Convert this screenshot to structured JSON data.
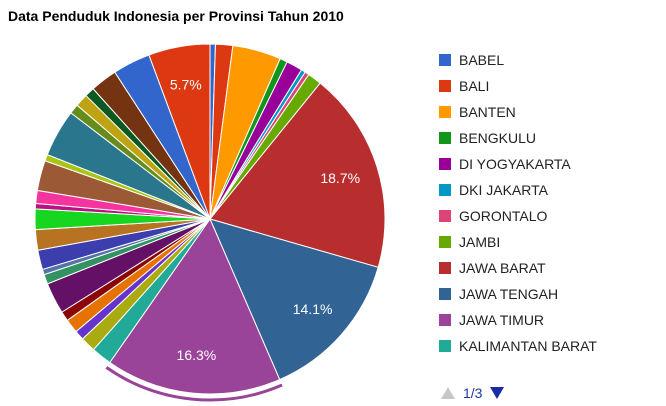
{
  "chart_data": {
    "type": "pie",
    "title": "Data Penduduk Indonesia per Provinsi Tahun 2010",
    "slices": [
      {
        "label": "BABEL",
        "value": 0.5,
        "color": "#3366cc"
      },
      {
        "label": "BALI",
        "value": 1.6,
        "color": "#dc3912"
      },
      {
        "label": "BANTEN",
        "value": 4.5,
        "color": "#ff9900"
      },
      {
        "label": "BENGKULU",
        "value": 0.7,
        "color": "#109618"
      },
      {
        "label": "DI YOGYAKARTA",
        "value": 1.5,
        "color": "#990099"
      },
      {
        "label": "DKI JAKARTA",
        "value": 0.4,
        "color": "#0099c6"
      },
      {
        "label": "GORONTALO",
        "value": 0.4,
        "color": "#dd4477"
      },
      {
        "label": "JAMBI",
        "value": 1.3,
        "color": "#66aa00"
      },
      {
        "label": "JAWA BARAT",
        "value": 18.7,
        "color": "#b82e2e"
      },
      {
        "label": "JAWA TENGAH",
        "value": 14.1,
        "color": "#316395"
      },
      {
        "label": "JAWA TIMUR",
        "value": 16.3,
        "color": "#994499"
      },
      {
        "label": "KALIMANTAN BARAT",
        "value": 1.9,
        "color": "#22aa99"
      },
      {
        "label": "",
        "value": 1.4,
        "color": "#aaaa11"
      },
      {
        "label": "",
        "value": 0.9,
        "color": "#6633cc"
      },
      {
        "label": "",
        "value": 1.3,
        "color": "#e67300"
      },
      {
        "label": "",
        "value": 0.9,
        "color": "#8b0707"
      },
      {
        "label": "",
        "value": 2.9,
        "color": "#651067"
      },
      {
        "label": "",
        "value": 0.9,
        "color": "#329262"
      },
      {
        "label": "",
        "value": 0.5,
        "color": "#5574a6"
      },
      {
        "label": "",
        "value": 1.8,
        "color": "#3b3eac"
      },
      {
        "label": "",
        "value": 1.9,
        "color": "#b77322"
      },
      {
        "label": "",
        "value": 1.9,
        "color": "#16d620"
      },
      {
        "label": "",
        "value": 0.5,
        "color": "#b91383"
      },
      {
        "label": "",
        "value": 1.2,
        "color": "#f4359e"
      },
      {
        "label": "",
        "value": 2.8,
        "color": "#9c5935"
      },
      {
        "label": "",
        "value": 0.6,
        "color": "#a9c413"
      },
      {
        "label": "",
        "value": 4.4,
        "color": "#2a778d"
      },
      {
        "label": "",
        "value": 0.9,
        "color": "#668d1c"
      },
      {
        "label": "",
        "value": 1.2,
        "color": "#bea413"
      },
      {
        "label": "",
        "value": 0.9,
        "color": "#0c5922"
      },
      {
        "label": "",
        "value": 2.5,
        "color": "#743411"
      },
      {
        "label": "",
        "value": 3.5,
        "color": "#3366cc"
      },
      {
        "label": "",
        "value": 5.7,
        "color": "#dc3912"
      }
    ],
    "shown_labels": {
      "8": "18.7%",
      "9": "14.1%",
      "10": "16.3%",
      "32": "5.7%"
    },
    "legend_position": "right",
    "highlighted_slice": 10
  },
  "legend": {
    "items": [
      {
        "label": "BABEL",
        "color": "#3366cc"
      },
      {
        "label": "BALI",
        "color": "#dc3912"
      },
      {
        "label": "BANTEN",
        "color": "#ff9900"
      },
      {
        "label": "BENGKULU",
        "color": "#109618"
      },
      {
        "label": "DI YOGYAKARTA",
        "color": "#990099"
      },
      {
        "label": "DKI JAKARTA",
        "color": "#0099c6"
      },
      {
        "label": "GORONTALO",
        "color": "#dd4477"
      },
      {
        "label": "JAMBI",
        "color": "#66aa00"
      },
      {
        "label": "JAWA BARAT",
        "color": "#b82e2e"
      },
      {
        "label": "JAWA TENGAH",
        "color": "#316395"
      },
      {
        "label": "JAWA TIMUR",
        "color": "#994499"
      },
      {
        "label": "KALIMANTAN BARAT",
        "color": "#22aa99"
      }
    ],
    "pager": {
      "text": "1/3",
      "prev_icon": "triangle-up-icon",
      "next_icon": "triangle-down-icon"
    }
  }
}
